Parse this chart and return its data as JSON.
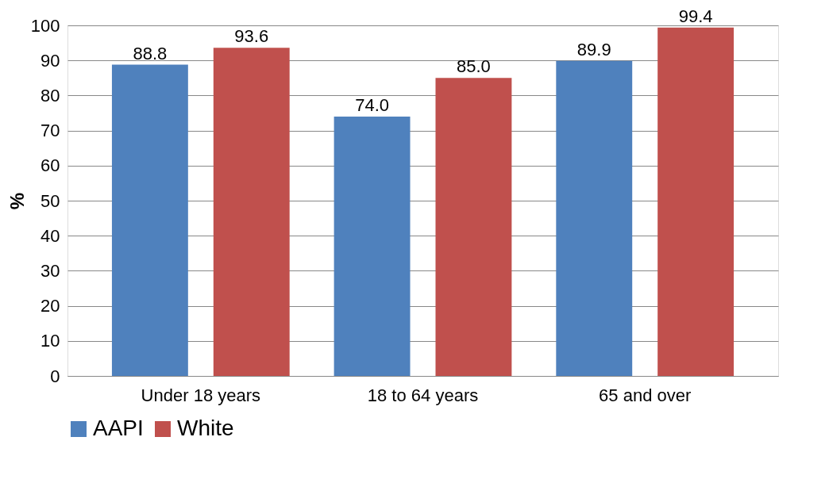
{
  "chart_data": {
    "type": "bar",
    "ylabel": "%",
    "categories": [
      "Under 18 years",
      "18 to 64 years",
      "65 and over"
    ],
    "series": [
      {
        "name": "AAPI",
        "color": "#4f81bd",
        "values": [
          88.8,
          74.0,
          89.9
        ],
        "value_labels": [
          "88.8",
          "74.0",
          "89.9"
        ]
      },
      {
        "name": "White",
        "color": "#c0504d",
        "values": [
          93.6,
          85.0,
          99.4
        ],
        "value_labels": [
          "93.6",
          "85.0",
          "99.4"
        ]
      }
    ],
    "ylim": [
      0,
      100
    ],
    "yticks": [
      0,
      10,
      20,
      30,
      40,
      50,
      60,
      70,
      80,
      90,
      100
    ],
    "grid": "y",
    "legend": "bottom"
  }
}
